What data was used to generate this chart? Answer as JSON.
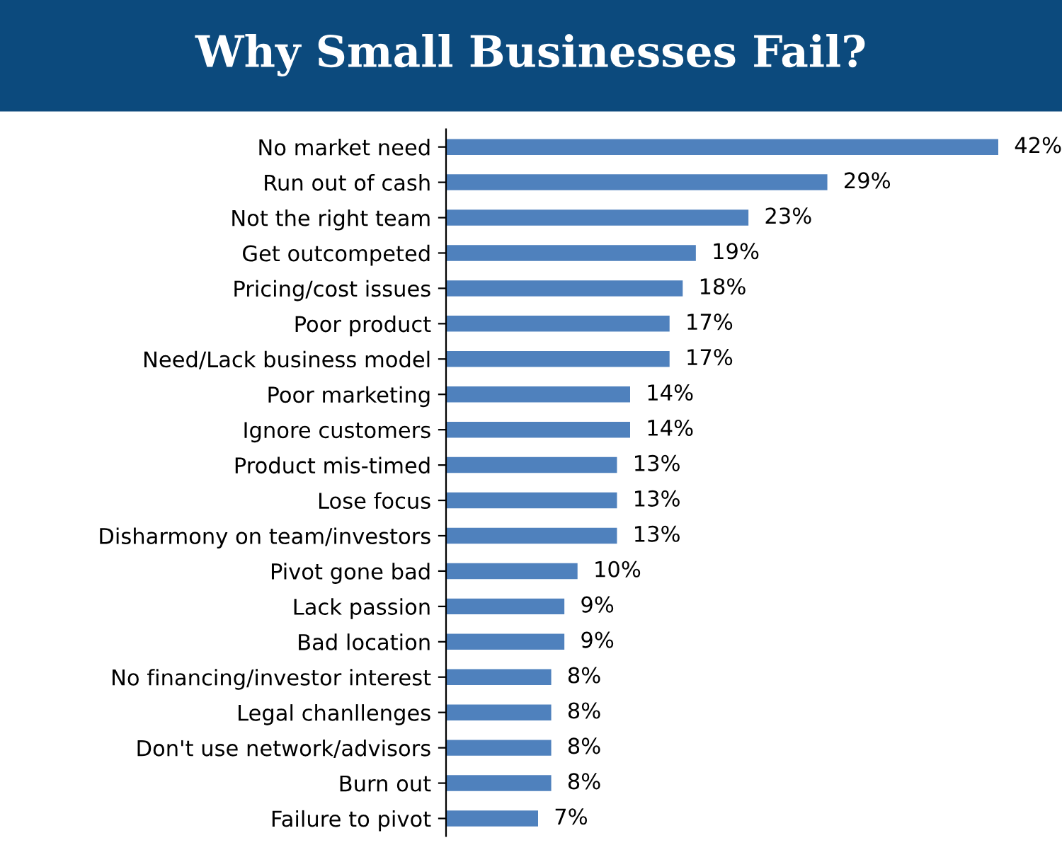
{
  "chart_data": {
    "type": "bar",
    "orientation": "horizontal",
    "title": "Why Small Businesses Fail?",
    "categories": [
      "No market need",
      "Run out of cash",
      "Not the right team",
      "Get outcompeted",
      "Pricing/cost issues",
      "Poor product",
      "Need/Lack business model",
      "Poor marketing",
      "Ignore customers",
      "Product mis-timed",
      "Lose focus",
      "Disharmony on team/investors",
      "Pivot gone bad",
      "Lack passion",
      "Bad location",
      "No financing/investor interest",
      "Legal chanllenges",
      "Don't use network/advisors",
      "Burn out",
      "Failure to pivot"
    ],
    "values": [
      42,
      29,
      23,
      19,
      18,
      17,
      17,
      14,
      14,
      13,
      13,
      13,
      10,
      9,
      9,
      8,
      8,
      8,
      8,
      7
    ],
    "value_labels": [
      "42%",
      "29%",
      "23%",
      "19%",
      "18%",
      "17%",
      "17%",
      "14%",
      "14%",
      "13%",
      "13%",
      "13%",
      "10%",
      "9%",
      "9%",
      "8%",
      "8%",
      "8%",
      "8%",
      "7%"
    ],
    "color": "#4f81bd",
    "grid": false,
    "legend": false
  }
}
